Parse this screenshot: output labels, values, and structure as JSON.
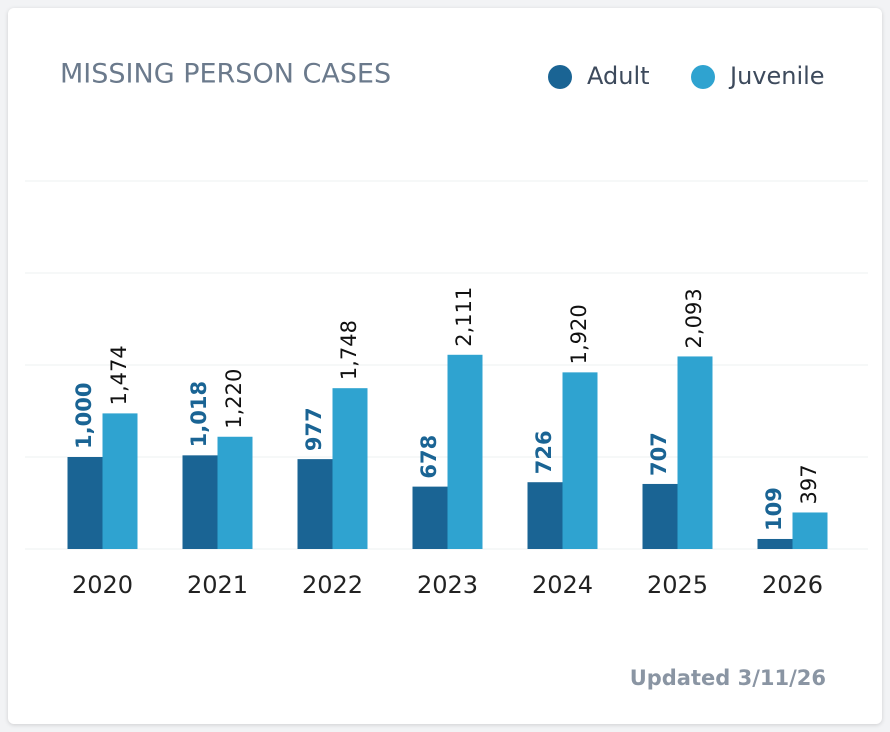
{
  "chart_data": {
    "type": "bar",
    "title": "MISSING PERSON CASES",
    "footnote": "Updated 3/11/26",
    "categories": [
      "2020",
      "2021",
      "2022",
      "2023",
      "2024",
      "2025",
      "2026"
    ],
    "series": [
      {
        "name": "Adult",
        "color": "#1a6494",
        "values": [
          1000,
          1018,
          977,
          678,
          726,
          707,
          109
        ],
        "value_labels": [
          "1,000",
          "1,018",
          "977",
          "678",
          "726",
          "707",
          "109"
        ]
      },
      {
        "name": "Juvenile",
        "color": "#2fa3d0",
        "values": [
          1474,
          1220,
          1748,
          2111,
          1920,
          2093,
          397
        ],
        "value_labels": [
          "1,474",
          "1,220",
          "1,748",
          "2,111",
          "1,920",
          "2,093",
          "397"
        ]
      }
    ],
    "ylim": [
      0,
      4000
    ],
    "yticks": [
      0,
      1000,
      2000,
      3000,
      4000
    ],
    "grid": true
  }
}
